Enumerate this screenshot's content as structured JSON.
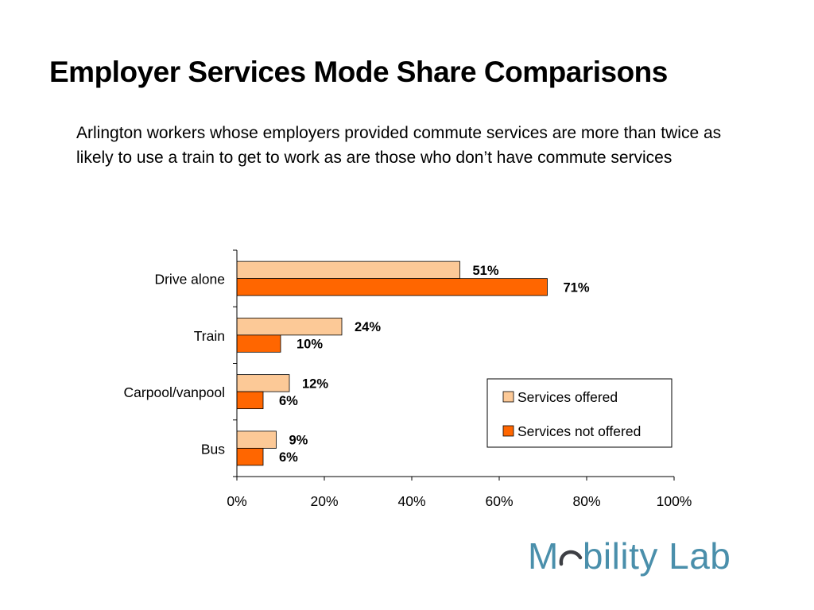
{
  "slide": {
    "title": "Employer Services Mode Share Comparisons",
    "subtitle": "Arlington workers whose employers provided commute services are more than twice as likely to use a train to get to work as are those who don’t have commute services"
  },
  "chart_data": {
    "type": "bar",
    "orientation": "horizontal",
    "title": "",
    "xlabel": "",
    "ylabel": "",
    "categories": [
      "Drive alone",
      "Train",
      "Carpool/vanpool",
      "Bus"
    ],
    "series": [
      {
        "name": "Services offered",
        "values": [
          51,
          24,
          12,
          9
        ],
        "labels": [
          "51%",
          "24%",
          "12%",
          "9%"
        ],
        "color": "#fcc997"
      },
      {
        "name": "Services not offered",
        "values": [
          71,
          10,
          6,
          6
        ],
        "labels": [
          "71%",
          "10%",
          "6%",
          "6%"
        ],
        "color": "#ff6600"
      }
    ],
    "xlim": [
      0,
      100
    ],
    "xticks": [
      "0%",
      "20%",
      "40%",
      "60%",
      "80%",
      "100%"
    ],
    "legend_position": "lower-right",
    "grid": false
  },
  "logo": {
    "prefix": "M",
    "suffix": "bility Lab",
    "accent_color": "#4a8fab",
    "swoosh_color": "#3d3f44"
  }
}
